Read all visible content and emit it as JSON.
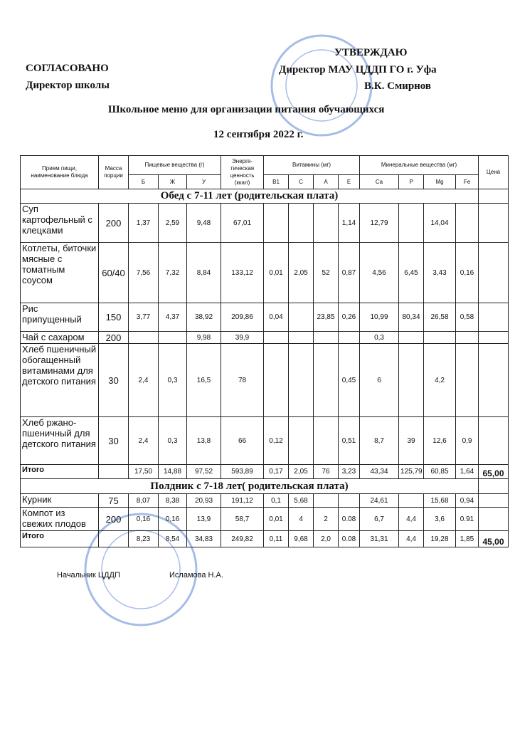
{
  "approval": {
    "left": [
      "СОГЛАСОВАНО",
      "Директор школы"
    ],
    "right": [
      "УТВЕРЖДАЮ",
      "Директор МАУ ЦДДП ГО г. Уфа",
      "В.К. Смирнов"
    ]
  },
  "title": "Школьное меню для организации питания обучающихся",
  "date": "12 сентября 2022 г.",
  "table": {
    "header": {
      "name": "Прием пищи, наименование блюда",
      "mass": "Масса порции",
      "nutrients": {
        "title": "Пищевые вещества (г)",
        "items": [
          "Б",
          "Ж",
          "У"
        ]
      },
      "energy": "Энерге-тическая ценность (ккал)",
      "vitamins": {
        "title": "Витамины (мг)",
        "items": [
          "В1",
          "С",
          "А",
          "Е"
        ]
      },
      "minerals": {
        "title": "Минеральные вещества (мг)",
        "items": [
          "Ca",
          "P",
          "Mg",
          "Fe"
        ]
      },
      "price": "Цена"
    },
    "sections": [
      {
        "title": "Обед с 7-11 лет (родительская плата)",
        "rows": [
          [
            "Суп картофельный с клецками",
            "200",
            "1,37",
            "2,59",
            "9,48",
            "67,01",
            null,
            null,
            null,
            "1,14",
            "12,79",
            null,
            "14,04",
            null,
            null
          ],
          [
            "Котлеты, биточки мясные с томатным соусом",
            "60/40",
            "7,56",
            "7,32",
            "8,84",
            "133,12",
            "0,01",
            "2,05",
            "52",
            "0,87",
            "4,56",
            "6,45",
            "3,43",
            "0,16",
            null
          ],
          [
            "Рис припущенный",
            "150",
            "3,77",
            "4,37",
            "38,92",
            "209,86",
            "0,04",
            null,
            "23,85",
            "0,26",
            "10,99",
            "80,34",
            "26,58",
            "0,58",
            null
          ],
          [
            "Чай с сахаром",
            "200",
            null,
            null,
            "9,98",
            "39,9",
            null,
            null,
            null,
            null,
            "0,3",
            null,
            null,
            null,
            null
          ],
          [
            "Хлеб пшеничный обогащенный витаминами для детского питания",
            "30",
            "2,4",
            "0,3",
            "16,5",
            "78",
            null,
            null,
            null,
            "0,45",
            "6",
            null,
            "4,2",
            null,
            null
          ],
          [
            "Хлеб ржано-пшеничный для детского питания",
            "30",
            "2,4",
            "0,3",
            "13,8",
            "66",
            "0,12",
            null,
            null,
            "0,51",
            "8,7",
            "39",
            "12,6",
            "0,9",
            null
          ],
          [
            "Итого",
            null,
            "17,50",
            "14,88",
            "97,52",
            "593,89",
            "0,17",
            "2,05",
            "76",
            "3,23",
            "43,34",
            "125,79",
            "60,85",
            "1,64",
            "65,00"
          ]
        ]
      },
      {
        "title": "Полдник с 7-18 лет( родительская плата)",
        "rows": [
          [
            "Курник",
            "75",
            "8,07",
            "8,38",
            "20,93",
            "191,12",
            "0,1",
            "5,68",
            null,
            null,
            "24,61",
            null,
            "15,68",
            "0,94",
            null
          ],
          [
            "Компот из свежих плодов",
            "200",
            "0,16",
            "0,16",
            "13,9",
            "58,7",
            "0,01",
            "4",
            "2",
            "0.08",
            "6,7",
            "4,4",
            "3,6",
            "0.91",
            null
          ],
          [
            "Итого",
            null,
            "8,23",
            "8,54",
            "34,83",
            "249,82",
            "0,11",
            "9,68",
            "2,0",
            "0.08",
            "31,31",
            "4,4",
            "19,28",
            "1,85",
            "45,00"
          ]
        ]
      }
    ]
  },
  "footer": {
    "position": "Начальник ЦДДП",
    "name": "Исламова Н.А."
  }
}
